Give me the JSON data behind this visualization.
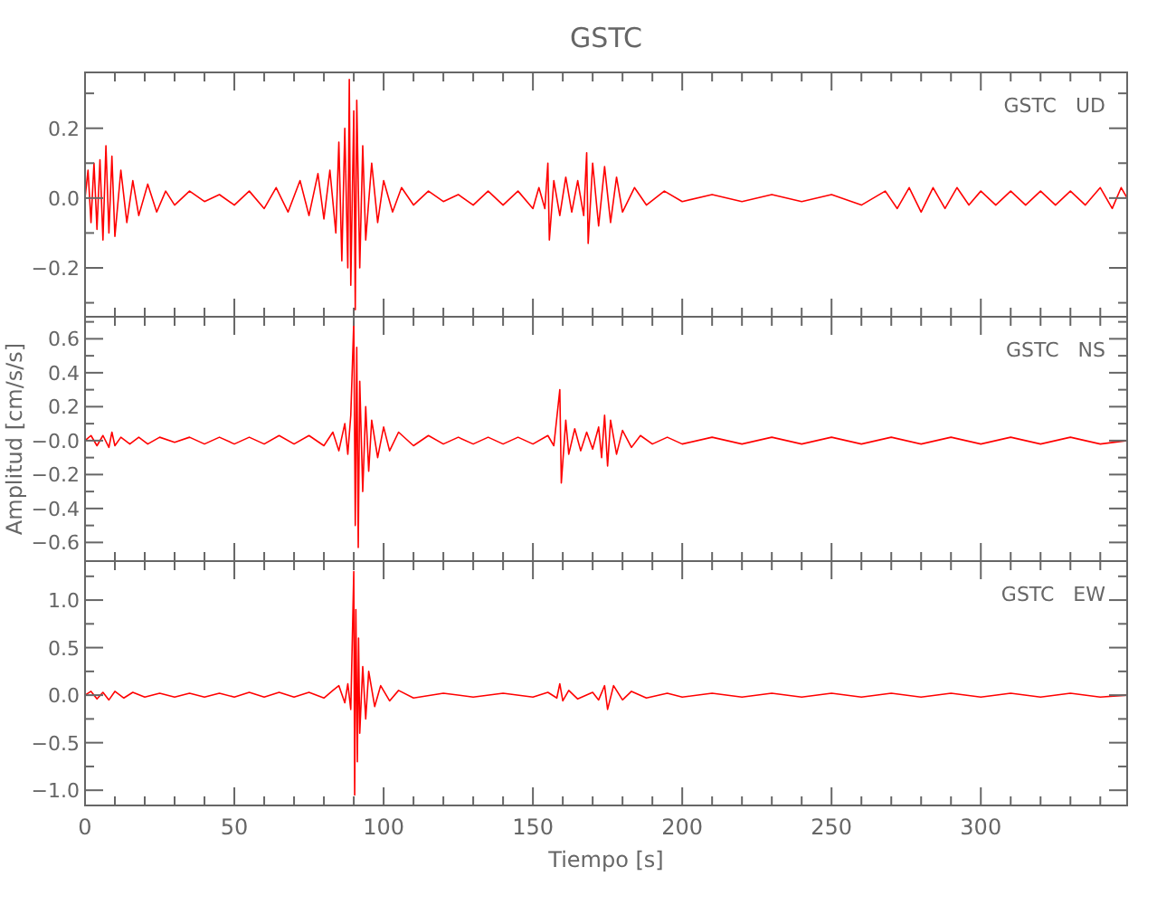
{
  "chart_data": [
    {
      "type": "line",
      "title": "GSTC",
      "annotations": [
        "GSTC   UD"
      ],
      "tick_labels": "y",
      "xlim": [
        0,
        349
      ],
      "ylim": [
        -0.34,
        0.36
      ],
      "xticks": [
        0,
        {
          "value": 10,
          "label": null
        },
        {
          "value": 20,
          "label": null
        },
        {
          "value": 30,
          "label": null
        },
        {
          "value": 40,
          "label": null
        },
        50,
        {
          "value": 60,
          "label": null
        },
        {
          "value": 70,
          "label": null
        },
        {
          "value": 80,
          "label": null
        },
        {
          "value": 90,
          "label": null
        },
        100,
        {
          "value": 110,
          "label": null
        },
        {
          "value": 120,
          "label": null
        },
        {
          "value": 130,
          "label": null
        },
        {
          "value": 140,
          "label": null
        },
        150,
        {
          "value": 160,
          "label": null
        },
        {
          "value": 170,
          "label": null
        },
        {
          "value": 180,
          "label": null
        },
        {
          "value": 190,
          "label": null
        },
        200,
        {
          "value": 210,
          "label": null
        },
        {
          "value": 220,
          "label": null
        },
        {
          "value": 230,
          "label": null
        },
        {
          "value": 240,
          "label": null
        },
        250,
        {
          "value": 260,
          "label": null
        },
        {
          "value": 270,
          "label": null
        },
        {
          "value": 280,
          "label": null
        },
        {
          "value": 290,
          "label": null
        },
        300,
        {
          "value": 310,
          "label": null
        },
        {
          "value": 320,
          "label": null
        },
        {
          "value": 330,
          "label": null
        },
        {
          "value": 340,
          "label": null
        }
      ],
      "yticks": [
        {
          "value": -0.3,
          "label": null
        },
        {
          "value": -0.2,
          "label": "−0.2"
        },
        {
          "value": -0.1,
          "label": null
        },
        {
          "value": 0,
          "label": "0.0"
        },
        {
          "value": 0.1,
          "label": null
        },
        {
          "value": 0.2,
          "label": "0.2"
        },
        {
          "value": 0.3,
          "label": null
        }
      ],
      "series": [
        {
          "color": "#ff0000",
          "x": [
            0,
            1,
            2,
            3,
            4,
            5,
            6,
            7,
            8,
            9,
            10,
            12,
            14,
            16,
            18,
            21,
            24,
            27,
            30,
            35,
            40,
            45,
            50,
            55,
            60,
            64,
            68,
            72,
            75,
            78,
            80,
            82,
            84,
            85,
            86,
            87,
            88,
            88.5,
            89,
            90,
            90.5,
            91,
            92,
            93,
            94,
            96,
            98,
            100,
            103,
            106,
            110,
            115,
            120,
            125,
            130,
            135,
            140,
            145,
            150,
            152,
            154,
            155,
            155.5,
            157,
            159,
            161,
            163,
            165,
            167,
            168,
            168.5,
            170,
            172,
            174,
            176,
            178,
            180,
            184,
            188,
            194,
            200,
            210,
            220,
            230,
            240,
            250,
            260,
            268,
            272,
            276,
            280,
            284,
            288,
            292,
            296,
            300,
            305,
            310,
            315,
            320,
            325,
            330,
            335,
            340,
            344,
            347,
            349
          ],
          "values": [
            0,
            0.08,
            -0.07,
            0.1,
            -0.09,
            0.11,
            -0.12,
            0.15,
            -0.1,
            0.12,
            -0.11,
            0.08,
            -0.07,
            0.05,
            -0.05,
            0.04,
            -0.04,
            0.02,
            -0.02,
            0.02,
            -0.01,
            0.01,
            -0.02,
            0.02,
            -0.03,
            0.03,
            -0.04,
            0.05,
            -0.05,
            0.07,
            -0.06,
            0.08,
            -0.1,
            0.16,
            -0.18,
            0.2,
            -0.2,
            0.34,
            -0.25,
            0.25,
            -0.32,
            0.28,
            -0.2,
            0.15,
            -0.12,
            0.1,
            -0.07,
            0.05,
            -0.04,
            0.03,
            -0.02,
            0.02,
            -0.01,
            0.01,
            -0.02,
            0.02,
            -0.02,
            0.02,
            -0.03,
            0.03,
            -0.03,
            0.1,
            -0.12,
            0.05,
            -0.05,
            0.06,
            -0.04,
            0.05,
            -0.05,
            0.13,
            -0.13,
            0.1,
            -0.08,
            0.09,
            -0.07,
            0.06,
            -0.04,
            0.03,
            -0.02,
            0.02,
            -0.01,
            0.01,
            -0.01,
            0.01,
            -0.01,
            0.01,
            -0.02,
            0.02,
            -0.03,
            0.03,
            -0.04,
            0.03,
            -0.03,
            0.03,
            -0.02,
            0.02,
            -0.02,
            0.02,
            -0.02,
            0.02,
            -0.02,
            0.02,
            -0.02,
            0.03,
            -0.03,
            0.03,
            0
          ]
        }
      ]
    },
    {
      "type": "line",
      "ylabel": "Amplitud [cm/s/s]",
      "annotations": [
        "GSTC   NS"
      ],
      "tick_labels": "y",
      "xlim": [
        0,
        349
      ],
      "ylim": [
        -0.71,
        0.73
      ],
      "xticks": [
        0,
        {
          "value": 10,
          "label": null
        },
        {
          "value": 20,
          "label": null
        },
        {
          "value": 30,
          "label": null
        },
        {
          "value": 40,
          "label": null
        },
        50,
        {
          "value": 60,
          "label": null
        },
        {
          "value": 70,
          "label": null
        },
        {
          "value": 80,
          "label": null
        },
        {
          "value": 90,
          "label": null
        },
        100,
        {
          "value": 110,
          "label": null
        },
        {
          "value": 120,
          "label": null
        },
        {
          "value": 130,
          "label": null
        },
        {
          "value": 140,
          "label": null
        },
        150,
        {
          "value": 160,
          "label": null
        },
        {
          "value": 170,
          "label": null
        },
        {
          "value": 180,
          "label": null
        },
        {
          "value": 190,
          "label": null
        },
        200,
        {
          "value": 210,
          "label": null
        },
        {
          "value": 220,
          "label": null
        },
        {
          "value": 230,
          "label": null
        },
        {
          "value": 240,
          "label": null
        },
        250,
        {
          "value": 260,
          "label": null
        },
        {
          "value": 270,
          "label": null
        },
        {
          "value": 280,
          "label": null
        },
        {
          "value": 290,
          "label": null
        },
        300,
        {
          "value": 310,
          "label": null
        },
        {
          "value": 320,
          "label": null
        },
        {
          "value": 330,
          "label": null
        },
        {
          "value": 340,
          "label": null
        }
      ],
      "yticks": [
        {
          "value": -0.6,
          "label": "−0.6"
        },
        {
          "value": -0.5,
          "label": null
        },
        {
          "value": -0.4,
          "label": "−0.4"
        },
        {
          "value": -0.3,
          "label": null
        },
        {
          "value": -0.2,
          "label": "−0.2"
        },
        {
          "value": -0.1,
          "label": null
        },
        {
          "value": 0,
          "label": "−0.0"
        },
        {
          "value": 0.1,
          "label": null
        },
        {
          "value": 0.2,
          "label": "0.2"
        },
        {
          "value": 0.3,
          "label": null
        },
        {
          "value": 0.4,
          "label": "0.4"
        },
        {
          "value": 0.5,
          "label": null
        },
        {
          "value": 0.6,
          "label": "0.6"
        },
        {
          "value": 0.7,
          "label": null
        }
      ],
      "series": [
        {
          "color": "#ff0000",
          "x": [
            0,
            2,
            4,
            6,
            8,
            9,
            10,
            12,
            15,
            18,
            21,
            25,
            30,
            35,
            40,
            45,
            50,
            55,
            60,
            65,
            70,
            75,
            80,
            83,
            85,
            87,
            88,
            89,
            90,
            90.5,
            91,
            91.5,
            92,
            93,
            94,
            95,
            96,
            98,
            100,
            102,
            105,
            110,
            115,
            120,
            125,
            130,
            135,
            140,
            145,
            150,
            155,
            157,
            159,
            159.5,
            161,
            162,
            164,
            166,
            168,
            170,
            172,
            173,
            174,
            175,
            176,
            178,
            180,
            183,
            186,
            190,
            195,
            200,
            210,
            220,
            230,
            240,
            250,
            260,
            270,
            280,
            290,
            300,
            310,
            320,
            330,
            340,
            349
          ],
          "values": [
            0,
            0.03,
            -0.03,
            0.03,
            -0.04,
            0.05,
            -0.03,
            0.02,
            -0.02,
            0.02,
            -0.02,
            0.02,
            -0.01,
            0.02,
            -0.02,
            0.02,
            -0.02,
            0.02,
            -0.02,
            0.03,
            -0.02,
            0.03,
            -0.03,
            0.05,
            -0.06,
            0.1,
            -0.08,
            0.15,
            0.7,
            -0.5,
            0.55,
            -0.63,
            0.35,
            -0.3,
            0.2,
            -0.18,
            0.12,
            -0.1,
            0.08,
            -0.06,
            0.05,
            -0.03,
            0.03,
            -0.02,
            0.02,
            -0.02,
            0.02,
            -0.02,
            0.02,
            -0.02,
            0.03,
            -0.03,
            0.3,
            -0.25,
            0.12,
            -0.08,
            0.07,
            -0.06,
            0.05,
            -0.05,
            0.08,
            -0.1,
            0.15,
            -0.15,
            0.12,
            -0.08,
            0.06,
            -0.04,
            0.03,
            -0.02,
            0.02,
            -0.02,
            0.02,
            -0.02,
            0.02,
            -0.02,
            0.02,
            -0.02,
            0.02,
            -0.02,
            0.02,
            -0.02,
            0.02,
            -0.02,
            0.02,
            -0.02,
            0
          ]
        }
      ]
    },
    {
      "type": "line",
      "xlabel": "Tiempo [s]",
      "annotations": [
        "GSTC   EW"
      ],
      "xlim": [
        0,
        349
      ],
      "ylim": [
        -1.16,
        1.41
      ],
      "xticks": [
        0,
        {
          "value": 10,
          "label": null
        },
        {
          "value": 20,
          "label": null
        },
        {
          "value": 30,
          "label": null
        },
        {
          "value": 40,
          "label": null
        },
        50,
        {
          "value": 60,
          "label": null
        },
        {
          "value": 70,
          "label": null
        },
        {
          "value": 80,
          "label": null
        },
        {
          "value": 90,
          "label": null
        },
        100,
        {
          "value": 110,
          "label": null
        },
        {
          "value": 120,
          "label": null
        },
        {
          "value": 130,
          "label": null
        },
        {
          "value": 140,
          "label": null
        },
        150,
        {
          "value": 160,
          "label": null
        },
        {
          "value": 170,
          "label": null
        },
        {
          "value": 180,
          "label": null
        },
        {
          "value": 190,
          "label": null
        },
        200,
        {
          "value": 210,
          "label": null
        },
        {
          "value": 220,
          "label": null
        },
        {
          "value": 230,
          "label": null
        },
        {
          "value": 240,
          "label": null
        },
        250,
        {
          "value": 260,
          "label": null
        },
        {
          "value": 270,
          "label": null
        },
        {
          "value": 280,
          "label": null
        },
        {
          "value": 290,
          "label": null
        },
        300,
        {
          "value": 310,
          "label": null
        },
        {
          "value": 320,
          "label": null
        },
        {
          "value": 330,
          "label": null
        },
        {
          "value": 340,
          "label": null
        }
      ],
      "yticks": [
        {
          "value": -1,
          "label": "−1.0"
        },
        {
          "value": -0.75,
          "label": null
        },
        {
          "value": -0.5,
          "label": "−0.5"
        },
        {
          "value": -0.25,
          "label": null
        },
        {
          "value": 0,
          "label": "0.0"
        },
        {
          "value": 0.25,
          "label": null
        },
        {
          "value": 0.5,
          "label": "0.5"
        },
        {
          "value": 0.75,
          "label": null
        },
        {
          "value": 1,
          "label": "1.0"
        },
        {
          "value": 1.25,
          "label": null
        }
      ],
      "series": [
        {
          "color": "#ff0000",
          "x": [
            0,
            2,
            4,
            6,
            8,
            10,
            13,
            16,
            20,
            25,
            30,
            35,
            40,
            45,
            50,
            55,
            60,
            65,
            70,
            75,
            80,
            83,
            85,
            87,
            88,
            89,
            90,
            90.3,
            90.7,
            91.2,
            91.6,
            92,
            93,
            94,
            95,
            97,
            99,
            102,
            105,
            110,
            120,
            130,
            140,
            150,
            155,
            158,
            159,
            160,
            162,
            165,
            170,
            172,
            174,
            175,
            177,
            180,
            183,
            188,
            195,
            200,
            210,
            220,
            230,
            240,
            250,
            260,
            270,
            280,
            290,
            300,
            310,
            320,
            330,
            340,
            349
          ],
          "values": [
            0,
            0.04,
            -0.04,
            0.03,
            -0.05,
            0.04,
            -0.03,
            0.03,
            -0.02,
            0.02,
            -0.02,
            0.02,
            -0.02,
            0.02,
            -0.02,
            0.03,
            -0.02,
            0.03,
            -0.02,
            0.03,
            -0.03,
            0.05,
            0.1,
            -0.08,
            0.12,
            -0.15,
            1.3,
            -1.05,
            0.9,
            -0.7,
            0.6,
            -0.4,
            0.3,
            -0.25,
            0.25,
            -0.12,
            0.1,
            -0.06,
            0.05,
            -0.03,
            0.02,
            -0.02,
            0.02,
            -0.02,
            0.03,
            -0.03,
            0.12,
            -0.06,
            0.05,
            -0.04,
            0.03,
            -0.05,
            0.1,
            -0.15,
            0.1,
            -0.05,
            0.04,
            -0.03,
            0.02,
            -0.02,
            0.02,
            -0.02,
            0.02,
            -0.02,
            0.02,
            -0.02,
            0.02,
            -0.02,
            0.02,
            -0.02,
            0.02,
            -0.02,
            0.02,
            -0.02,
            0
          ]
        }
      ]
    }
  ]
}
